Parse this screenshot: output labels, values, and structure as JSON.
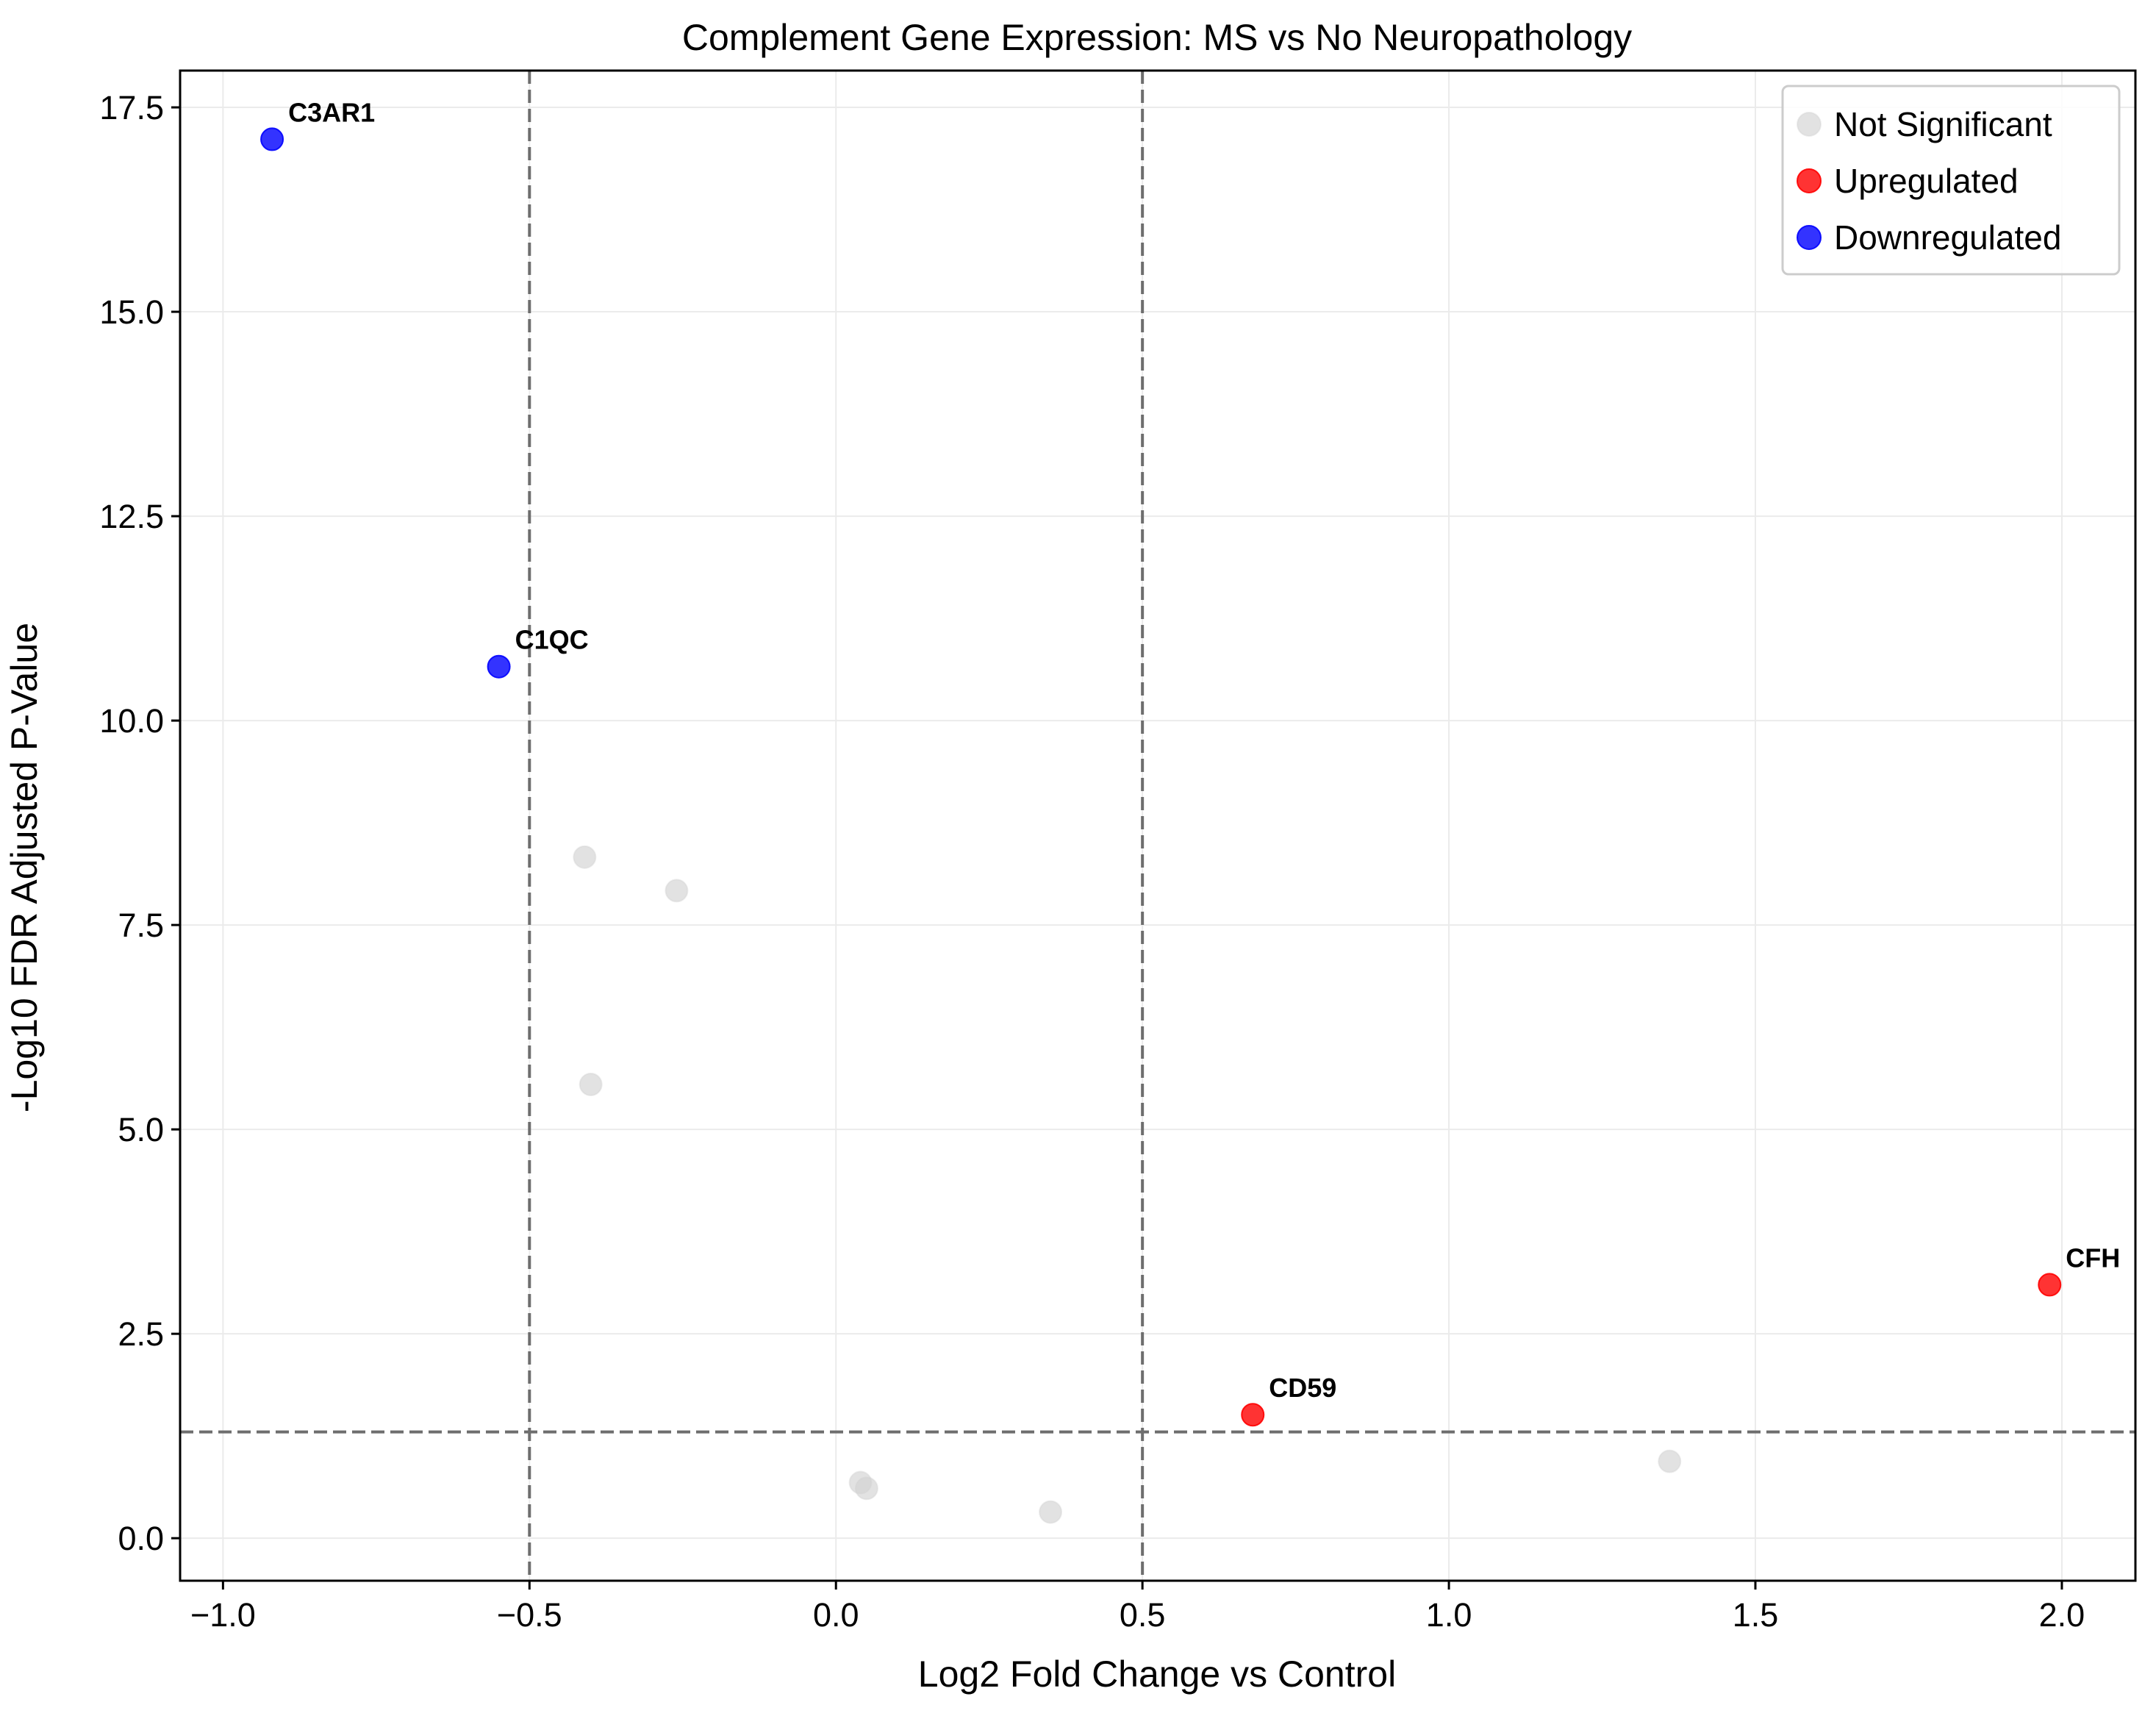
{
  "chart_data": {
    "type": "scatter",
    "title": "Complement Gene Expression: MS vs No Neuropathology",
    "xlabel": "Log2 Fold Change vs Control",
    "ylabel": "-Log10 FDR Adjusted P-Value",
    "xlim": [
      -1.07,
      2.12
    ],
    "ylim": [
      -0.52,
      17.95
    ],
    "x_ticks": [
      -1.0,
      -0.5,
      0.0,
      0.5,
      1.0,
      1.5,
      2.0
    ],
    "x_tick_labels": [
      "−1.0",
      "−0.5",
      "0.0",
      "0.5",
      "1.0",
      "1.5",
      "2.0"
    ],
    "y_ticks": [
      0.0,
      2.5,
      5.0,
      7.5,
      10.0,
      12.5,
      15.0,
      17.5
    ],
    "y_tick_labels": [
      "0.0",
      "2.5",
      "5.0",
      "7.5",
      "10.0",
      "12.5",
      "15.0",
      "17.5"
    ],
    "grid": true,
    "legend_position": "top-right",
    "thresholds": {
      "fold_change": [
        -0.5,
        0.5
      ],
      "neg_log10_p": 1.3
    },
    "colors": {
      "Not Significant": "#d3d3d3",
      "Upregulated": "#ff0000",
      "Downregulated": "#0000ff"
    },
    "series": [
      {
        "name": "Not Significant",
        "points": [
          {
            "x": -0.41,
            "y": 8.33
          },
          {
            "x": -0.26,
            "y": 7.92
          },
          {
            "x": -0.4,
            "y": 5.55
          },
          {
            "x": 0.04,
            "y": 0.68
          },
          {
            "x": 0.05,
            "y": 0.61
          },
          {
            "x": 0.35,
            "y": 0.32
          },
          {
            "x": 1.36,
            "y": 0.94
          }
        ]
      },
      {
        "name": "Upregulated",
        "points": [
          {
            "x": 0.68,
            "y": 1.51,
            "label": "CD59"
          },
          {
            "x": 1.98,
            "y": 3.1,
            "label": "CFH"
          }
        ]
      },
      {
        "name": "Downregulated",
        "points": [
          {
            "x": -0.92,
            "y": 17.11,
            "label": "C3AR1"
          },
          {
            "x": -0.55,
            "y": 10.66,
            "label": "C1QC"
          }
        ]
      }
    ]
  }
}
